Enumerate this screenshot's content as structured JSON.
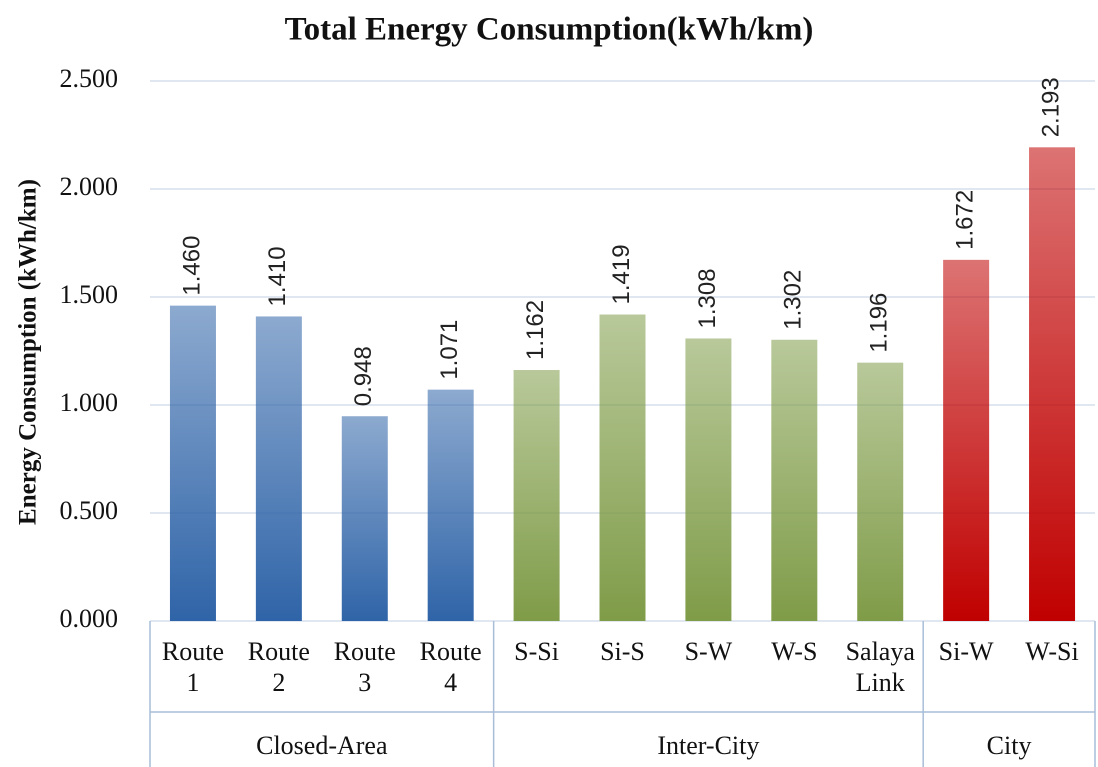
{
  "chart_data": {
    "type": "bar",
    "title": "Total Energy Consumption(kWh/km)",
    "y_label": "Energy Consumption (kWh/km)",
    "ylim": [
      0,
      2.5
    ],
    "yticks": [
      {
        "value": 0,
        "label": "0.000"
      },
      {
        "value": 0.5,
        "label": "0.500"
      },
      {
        "value": 1,
        "label": "1.000"
      },
      {
        "value": 1.5,
        "label": "1.500"
      },
      {
        "value": 2,
        "label": "2.000"
      },
      {
        "value": 2.5,
        "label": "2.500"
      }
    ],
    "grid": true,
    "groups": [
      {
        "name": "Closed-Area",
        "color": "#2f64a8",
        "categories": [
          "Route 1",
          "Route 2",
          "Route 3",
          "Route 4"
        ],
        "values": [
          1.46,
          1.41,
          0.948,
          1.071
        ],
        "value_labels": [
          "1.460",
          "1.410",
          "0.948",
          "1.071"
        ]
      },
      {
        "name": "Inter-City",
        "color": "#7f9c48",
        "categories": [
          "S-Si",
          "Si-S",
          "S-W",
          "W-S",
          "Salaya Link"
        ],
        "values": [
          1.162,
          1.419,
          1.308,
          1.302,
          1.196
        ],
        "value_labels": [
          "1.162",
          "1.419",
          "1.308",
          "1.302",
          "1.196"
        ]
      },
      {
        "name": "City",
        "color": "#c00000",
        "categories": [
          "Si-W",
          "W-Si"
        ],
        "values": [
          1.672,
          2.193
        ],
        "value_labels": [
          "1.672",
          "2.193"
        ]
      }
    ]
  }
}
